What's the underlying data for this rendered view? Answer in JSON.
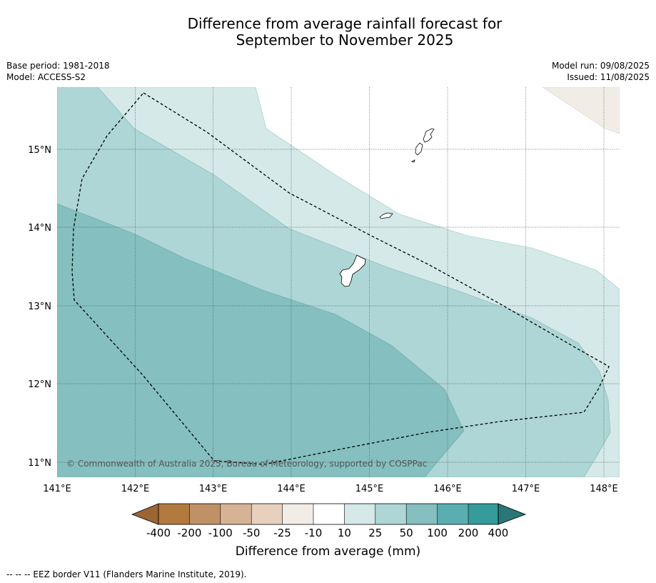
{
  "title": {
    "line1": "Difference from average rainfall forecast for",
    "line2": "September to November 2025"
  },
  "meta_left": {
    "base_period": "Base period: 1981-2018",
    "model": "Model: ACCESS-S2"
  },
  "meta_right": {
    "model_run": "Model run: 09/08/2025",
    "issued": "Issued: 11/08/2025"
  },
  "map": {
    "lon_ticks": [
      "141°E",
      "142°E",
      "143°E",
      "144°E",
      "145°E",
      "146°E",
      "147°E",
      "148°E"
    ],
    "lat_ticks": [
      "15°N",
      "14°N",
      "13°N",
      "12°N",
      "11°N"
    ],
    "lon_values": [
      141,
      142,
      143,
      144,
      145,
      146,
      147,
      148
    ],
    "lat_values": [
      15,
      14,
      13,
      12,
      11
    ],
    "lon_range": [
      141,
      148.2
    ],
    "lat_range": [
      10.8,
      15.8
    ],
    "gridlines": true,
    "copyright": "© Commonwealth of Australia 2025, Bureau of Meteorology, supported by COSPPac"
  },
  "colorbar": {
    "tick_labels": [
      "-400",
      "-200",
      "-100",
      "-50",
      "-25",
      "-10",
      "10",
      "25",
      "50",
      "100",
      "200",
      "400"
    ],
    "colors": [
      "#9b6534",
      "#b27a3e",
      "#c09167",
      "#d6b395",
      "#e7d1be",
      "#f1ece6",
      "#ffffff",
      "#d4e9e8",
      "#aed6d6",
      "#85bfbf",
      "#5aaeb0",
      "#359b9b",
      "#2b7676"
    ],
    "label": "Difference from average (mm)"
  },
  "footnote": "--  --  -- EEZ border V11 (Flanders Marine Institute, 2019)."
}
